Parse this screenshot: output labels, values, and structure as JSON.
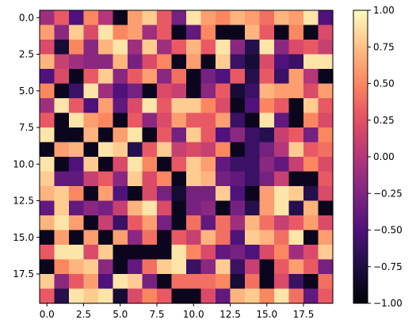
{
  "chart_data": {
    "type": "heatmap",
    "title": "",
    "xlabel": "",
    "ylabel": "",
    "colormap": "magma",
    "rows": 20,
    "cols": 20,
    "xlim": [
      -0.5,
      19.5
    ],
    "ylim": [
      19.5,
      -0.5
    ],
    "x_ticks": [
      0.0,
      2.5,
      5.0,
      7.5,
      10.0,
      12.5,
      15.0,
      17.5
    ],
    "x_tick_labels": [
      "0.0",
      "2.5",
      "5.0",
      "7.5",
      "10.0",
      "12.5",
      "15.0",
      "17.5"
    ],
    "y_ticks": [
      0.0,
      2.5,
      5.0,
      7.5,
      10.0,
      12.5,
      15.0,
      17.5
    ],
    "y_tick_labels": [
      "0.0",
      "2.5",
      "5.0",
      "7.5",
      "10.0",
      "12.5",
      "15.0",
      "17.5"
    ],
    "colorbar": {
      "min": -1.0,
      "max": 1.0,
      "ticks": [
        1.0,
        0.75,
        0.5,
        0.25,
        0.0,
        -0.25,
        -0.5,
        -0.75,
        -1.0
      ],
      "tick_labels": [
        "1.00",
        "0.75",
        "0.50",
        "0.25",
        "0.00",
        "−0.25",
        "−0.50",
        "−0.75",
        "−1.00"
      ]
    },
    "values": [
      [
        -0.1,
        0.3,
        -0.5,
        0.5,
        0.0,
        -0.9,
        0.6,
        0.8,
        0.3,
        -0.3,
        0.9,
        0.6,
        0.5,
        0.7,
        0.6,
        0.4,
        0.7,
        0.6,
        0.9,
        -0.5
      ],
      [
        0.6,
        -0.2,
        0.8,
        0.2,
        0.9,
        0.5,
        0.6,
        -0.1,
        0.3,
        -0.9,
        -0.4,
        0.5,
        -0.9,
        -0.9,
        0.7,
        0.3,
        -0.9,
        0.5,
        -0.9,
        0.2
      ],
      [
        0.2,
        -0.8,
        0.5,
        -0.2,
        0.7,
        0.9,
        -0.1,
        0.8,
        -0.1,
        0.3,
        0.7,
        0.3,
        0.9,
        -0.2,
        -0.7,
        0.9,
        -0.2,
        0.2,
        0.3,
        0.1
      ],
      [
        0.7,
        0.1,
        -0.1,
        -0.2,
        -0.2,
        0.7,
        -0.3,
        0.2,
        0.5,
        -0.9,
        0.6,
        -0.9,
        0.8,
        -0.6,
        -0.8,
        0.2,
        -0.5,
        -0.6,
        0.9,
        0.9
      ],
      [
        -0.5,
        0.2,
        -0.9,
        0.3,
        0.8,
        -0.2,
        0.3,
        0.6,
        -0.2,
        0.4,
        -0.9,
        -0.3,
        -0.5,
        0.3,
        -0.7,
        0.3,
        -0.6,
        0.6,
        0.0,
        -0.9
      ],
      [
        0.5,
        -0.9,
        -0.6,
        0.9,
        -0.1,
        -0.5,
        -0.3,
        -0.9,
        0.2,
        0.1,
        -0.9,
        -0.2,
        0.3,
        -0.8,
        -0.6,
        0.7,
        0.6,
        0.6,
        0.2,
        0.6
      ],
      [
        -0.1,
        0.9,
        0.3,
        -0.5,
        0.6,
        -0.4,
        0.2,
        0.9,
        0.3,
        0.8,
        0.8,
        0.5,
        0.2,
        -0.9,
        -0.5,
        0.5,
        0.3,
        -0.9,
        0.8,
        0.3
      ],
      [
        0.3,
        -0.9,
        0.9,
        0.6,
        0.5,
        -0.9,
        0.3,
        -0.2,
        0.2,
        0.6,
        0.3,
        0.3,
        0.6,
        -0.6,
        -0.9,
        0.9,
        -0.4,
        -0.9,
        0.5,
        0.2
      ],
      [
        0.9,
        -0.9,
        -0.9,
        0.7,
        -0.9,
        0.6,
        0.9,
        -0.9,
        0.3,
        -0.3,
        0.8,
        0.3,
        -0.5,
        -0.2,
        -0.6,
        -0.7,
        0.1,
        0.3,
        -0.3,
        0.5
      ],
      [
        -0.9,
        0.6,
        0.7,
        -0.9,
        0.9,
        0.8,
        -0.7,
        0.3,
        0.8,
        0.1,
        0.2,
        0.1,
        0.5,
        -0.9,
        -0.6,
        -0.3,
        0.0,
        0.8,
        0.3,
        0.4
      ],
      [
        0.9,
        -0.9,
        -0.5,
        0.8,
        -0.9,
        0.2,
        0.9,
        0.5,
        -0.9,
        0.3,
        0.8,
        0.6,
        -0.4,
        -0.6,
        -0.6,
        -0.2,
        -0.4,
        0.1,
        0.5,
        0.2
      ],
      [
        0.8,
        -0.4,
        -0.4,
        0.1,
        0.3,
        -0.2,
        0.8,
        0.2,
        0.5,
        -0.9,
        0.8,
        0.7,
        -0.3,
        -0.4,
        -0.6,
        -0.3,
        0.1,
        -0.9,
        -0.9,
        0.3
      ],
      [
        0.7,
        0.8,
        0.5,
        -0.9,
        0.6,
        -0.5,
        -0.9,
        0.2,
        -0.3,
        -0.8,
        -0.3,
        -0.3,
        0.8,
        -0.5,
        -0.9,
        0.6,
        0.9,
        0.8,
        -0.7,
        0.2
      ],
      [
        -0.4,
        0.8,
        -0.4,
        -0.2,
        -0.3,
        0.1,
        0.7,
        0.9,
        0.2,
        -0.9,
        -0.3,
        -0.2,
        -0.9,
        -0.3,
        -0.7,
        0.6,
        0.9,
        -0.7,
        0.7,
        -0.9
      ],
      [
        0.7,
        0.9,
        0.6,
        -0.9,
        0.1,
        -0.6,
        0.3,
        0.6,
        -0.3,
        -0.9,
        0.4,
        -0.4,
        0.4,
        -0.1,
        0.7,
        0.4,
        0.1,
        0.3,
        0.6,
        0.2
      ],
      [
        -0.9,
        0.6,
        -0.9,
        0.6,
        -0.9,
        0.6,
        -0.2,
        0.4,
        -0.9,
        0.3,
        0.1,
        0.7,
        0.4,
        -0.5,
        0.8,
        0.7,
        0.4,
        0.9,
        -0.9,
        0.6
      ],
      [
        0.3,
        0.9,
        0.9,
        0.2,
        0.8,
        -0.9,
        -0.9,
        -0.9,
        -0.9,
        0.9,
        0.5,
        0.2,
        -0.4,
        -0.3,
        -0.5,
        0.2,
        0.5,
        -0.1,
        0.2,
        0.8
      ],
      [
        -0.9,
        0.5,
        0.7,
        0.8,
        -0.2,
        -0.9,
        -0.4,
        0.4,
        0.8,
        0.9,
        -0.6,
        -0.2,
        0.8,
        -0.6,
        0.1,
        -0.9,
        0.3,
        0.6,
        0.3,
        -0.3
      ],
      [
        0.8,
        -0.2,
        0.3,
        0.6,
        -0.5,
        0.9,
        0.8,
        -0.3,
        -0.9,
        0.4,
        0.4,
        0.4,
        0.5,
        -0.8,
        0.4,
        -0.9,
        0.2,
        -0.6,
        -0.9,
        0.4
      ],
      [
        0.3,
        -0.7,
        0.9,
        0.8,
        0.9,
        -0.8,
        0.2,
        0.5,
        0.3,
        -0.9,
        -0.9,
        0.2,
        -0.4,
        0.7,
        0.8,
        0.5,
        0.9,
        0.4,
        -0.4,
        0.3
      ]
    ]
  }
}
